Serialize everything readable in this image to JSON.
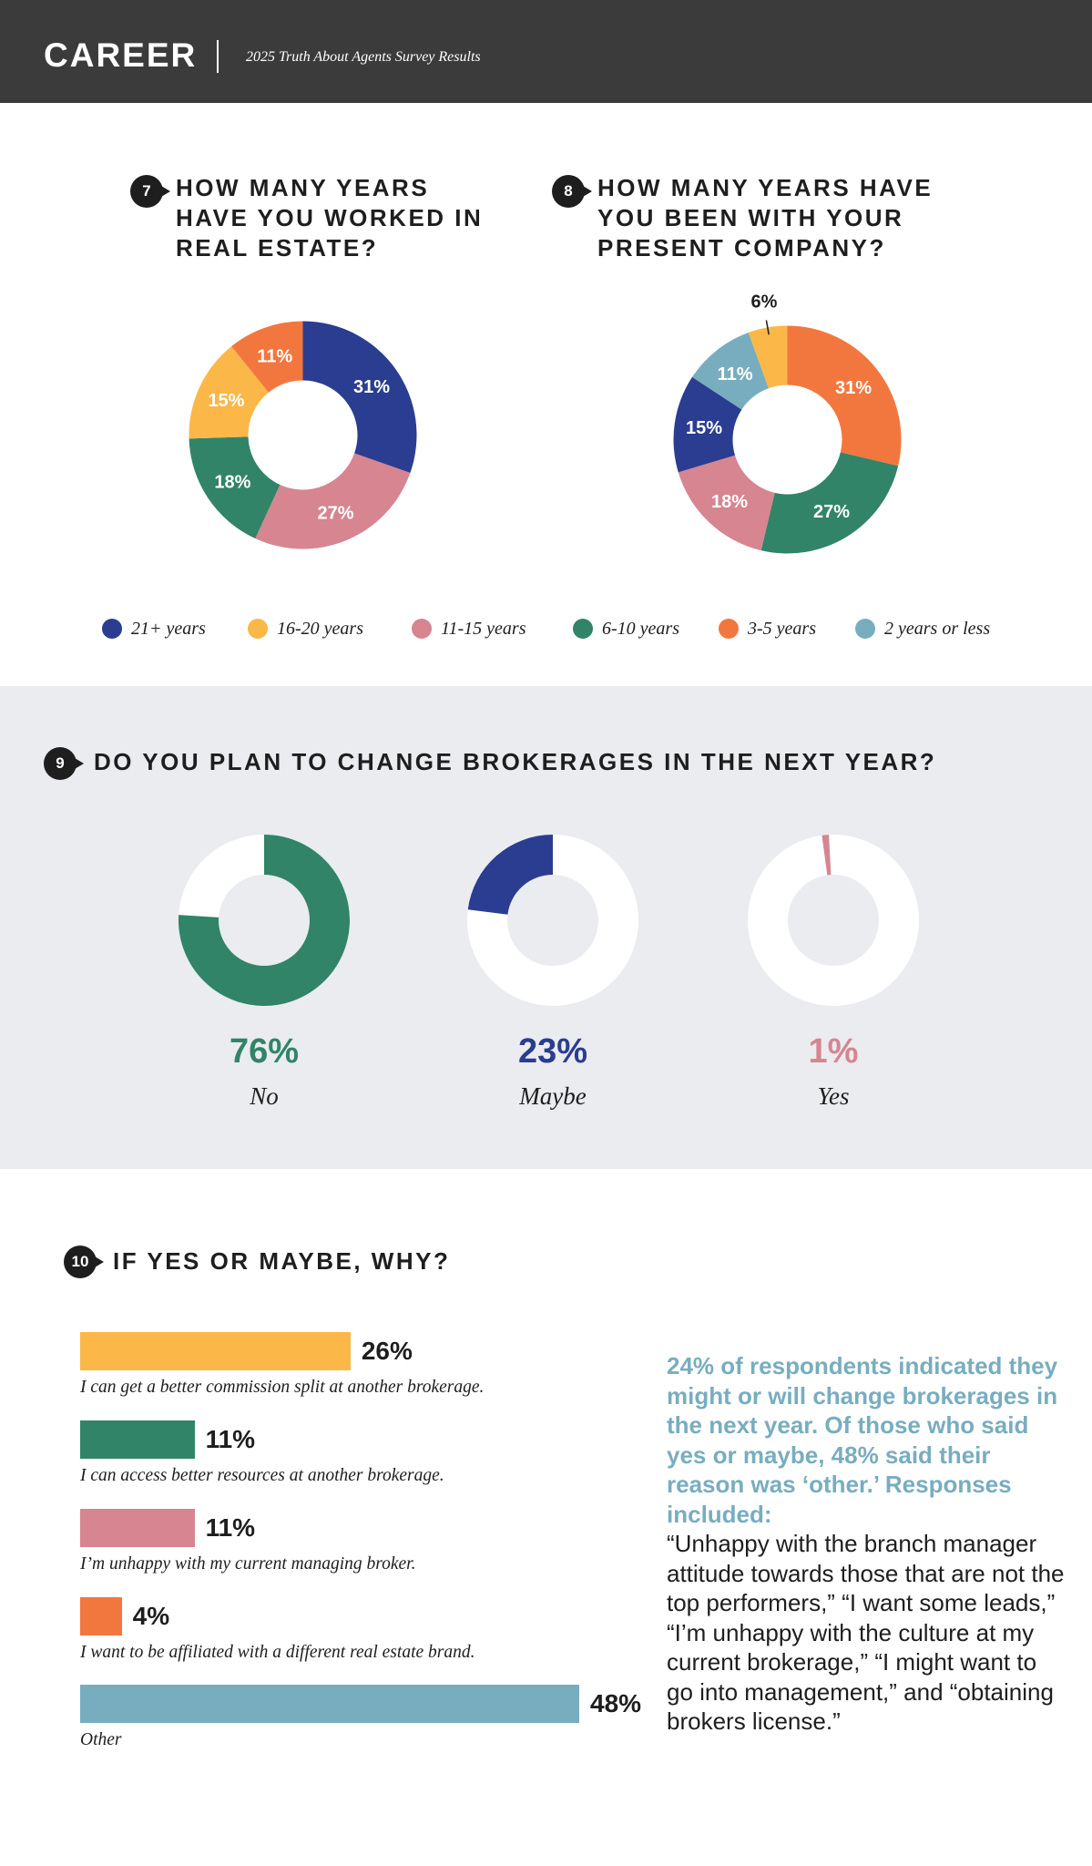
{
  "header": {
    "brand": "CAREER",
    "subtitle": "2025 Truth About Agents Survey Results"
  },
  "colors": {
    "navy": "#2b3d91",
    "yellow": "#fbb748",
    "pink": "#d68591",
    "green": "#318467",
    "orange": "#f2773f",
    "teal": "#78adbf",
    "band": "#eaecef"
  },
  "q7": {
    "number": "7",
    "title": "HOW MANY YEARS HAVE YOU WORKED IN REAL ESTATE?"
  },
  "q8": {
    "number": "8",
    "title": "HOW MANY YEARS HAVE YOU BEEN WITH YOUR PRESENT COMPANY?"
  },
  "q9": {
    "number": "9",
    "title": "DO YOU PLAN TO CHANGE BROKERAGES IN THE NEXT YEAR?"
  },
  "q10": {
    "number": "10",
    "title": "IF YES OR MAYBE, WHY?",
    "note_highlight": "24% of respondents indicated they might or will change brokerages in the next year. Of those who said yes or maybe, 48% said their reason was ‘other.’ Responses included:",
    "note_body": "“Unhappy with the branch manager attitude towards those that are not the top performers,” “I want some leads,” “I’m unhappy with the culture at my current brokerage,” “I might want to go into management,” and “obtaining brokers license.”"
  },
  "legend": [
    {
      "label": "21+ years",
      "color": "#2b3d91"
    },
    {
      "label": "16-20 years",
      "color": "#fbb748"
    },
    {
      "label": "11-15 years",
      "color": "#d68591"
    },
    {
      "label": "6-10 years",
      "color": "#318467"
    },
    {
      "label": "3-5 years",
      "color": "#f2773f"
    },
    {
      "label": "2 years or less",
      "color": "#78adbf"
    }
  ],
  "chart_data": [
    {
      "type": "pie",
      "title": "HOW MANY YEARS HAVE YOU WORKED IN REAL ESTATE?",
      "slices": [
        {
          "label": "21+ years",
          "value": 31,
          "display": "31%",
          "color": "#2b3d91"
        },
        {
          "label": "11-15 years",
          "value": 27,
          "display": "27%",
          "color": "#d68591"
        },
        {
          "label": "6-10 years",
          "value": 18,
          "display": "18%",
          "color": "#318467"
        },
        {
          "label": "16-20 years",
          "value": 15,
          "display": "15%",
          "color": "#fbb748"
        },
        {
          "label": "3-5 years",
          "value": 11,
          "display": "11%",
          "color": "#f2773f"
        }
      ]
    },
    {
      "type": "pie",
      "title": "HOW MANY YEARS HAVE YOU BEEN WITH YOUR PRESENT COMPANY?",
      "slices": [
        {
          "label": "3-5 years",
          "value": 31,
          "display": "31%",
          "color": "#f2773f"
        },
        {
          "label": "6-10 years",
          "value": 27,
          "display": "27%",
          "color": "#318467"
        },
        {
          "label": "11-15 years",
          "value": 18,
          "display": "18%",
          "color": "#d68591"
        },
        {
          "label": "21+ years",
          "value": 15,
          "display": "15%",
          "color": "#2b3d91"
        },
        {
          "label": "2 years or less",
          "value": 11,
          "display": "11%",
          "color": "#78adbf"
        },
        {
          "label": "16-20 years",
          "value": 6,
          "display": "6%",
          "color": "#fbb748"
        }
      ]
    },
    {
      "type": "pie",
      "title": "DO YOU PLAN TO CHANGE BROKERAGES IN THE NEXT YEAR?",
      "slices": [
        {
          "label": "No",
          "value": 76,
          "display": "76%",
          "color": "#318467"
        },
        {
          "label": "Maybe",
          "value": 23,
          "display": "23%",
          "color": "#2b3d91"
        },
        {
          "label": "Yes",
          "value": 1,
          "display": "1%",
          "color": "#d68591"
        }
      ]
    },
    {
      "type": "bar",
      "title": "IF YES OR MAYBE, WHY?",
      "orientation": "horizontal",
      "categories": [
        "I can get a better commission split at another brokerage.",
        "I can access better resources at another brokerage.",
        "I’m unhappy with my current managing broker.",
        "I want to be affiliated with a different real estate brand.",
        "Other"
      ],
      "values": [
        26,
        11,
        11,
        4,
        48
      ],
      "display": [
        "26%",
        "11%",
        "11%",
        "4%",
        "48%"
      ],
      "colors": [
        "#fbb748",
        "#318467",
        "#d68591",
        "#f2773f",
        "#78adbf"
      ]
    }
  ]
}
